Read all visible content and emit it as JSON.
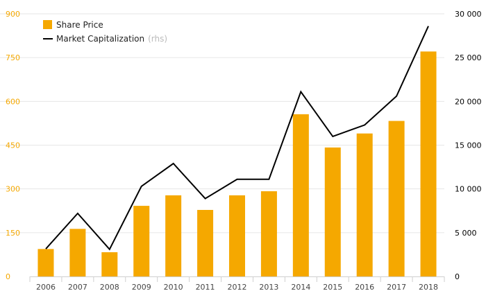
{
  "chart_data": {
    "type": "bar",
    "categories": [
      "2006",
      "2007",
      "2008",
      "2009",
      "2010",
      "2011",
      "2012",
      "2013",
      "2014",
      "2015",
      "2016",
      "2017",
      "2018"
    ],
    "series": [
      {
        "name": "Share Price",
        "kind": "bar",
        "axis": "left",
        "color": "#f5a800",
        "values": [
          94,
          163,
          83,
          242,
          278,
          228,
          278,
          292,
          556,
          442,
          490,
          533,
          771
        ]
      },
      {
        "name": "Market Capitalization",
        "name_suffix": "(rhs)",
        "kind": "line",
        "axis": "right",
        "color": "#000000",
        "values": [
          3150,
          7200,
          3100,
          10300,
          12900,
          8900,
          11100,
          11100,
          21100,
          16000,
          17300,
          20600,
          28600
        ]
      }
    ],
    "y_left": {
      "ticks": [
        "0",
        "150",
        "300",
        "450",
        "600",
        "750",
        "900"
      ],
      "ylim": [
        0,
        900
      ]
    },
    "y_right": {
      "ticks": [
        "0",
        "5 000",
        "10 000",
        "15 000",
        "20 000",
        "25 000",
        "30 000"
      ],
      "ylim": [
        0,
        30000
      ]
    },
    "grid": true,
    "legend_position": "top-left"
  }
}
